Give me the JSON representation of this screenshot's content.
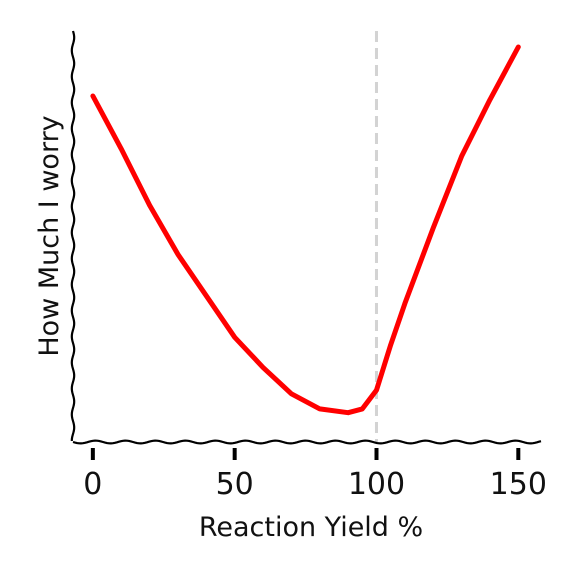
{
  "chart_data": {
    "type": "line",
    "title": "",
    "xlabel": "Reaction Yield %",
    "ylabel": "How Much I worry",
    "xlim": [
      -7,
      158
    ],
    "ylim": [
      0,
      100
    ],
    "x_ticks": [
      0,
      50,
      100,
      150
    ],
    "x_tick_labels": [
      "0",
      "50",
      "100",
      "150"
    ],
    "y_ticks": [],
    "grid": false,
    "legend": "none",
    "reference_line": {
      "x": 100,
      "style": "dashed",
      "color": "#d3d3d3"
    },
    "series": [
      {
        "color": "#ff0000",
        "x": [
          0,
          10,
          20,
          30,
          40,
          50,
          60,
          70,
          80,
          90,
          95,
          100,
          105,
          110,
          120,
          130,
          140,
          150
        ],
        "y": [
          87,
          73,
          58,
          45,
          34,
          23,
          15,
          8,
          4,
          3,
          4,
          9,
          21,
          32,
          52,
          71,
          86,
          100
        ]
      }
    ]
  }
}
